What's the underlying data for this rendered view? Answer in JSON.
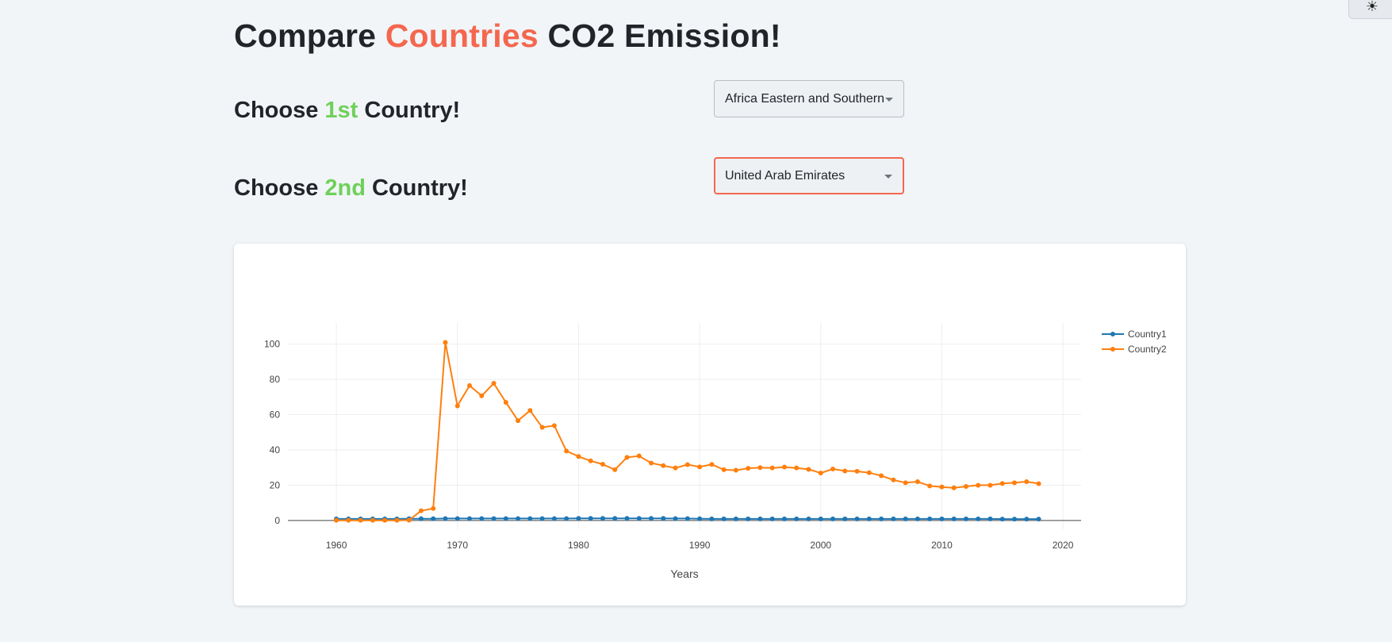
{
  "header": {
    "title_pre": "Compare ",
    "title_highlight": "Countries",
    "title_post": " CO2 Emission!"
  },
  "first_choice": {
    "pre": "Choose ",
    "highlight": "1st",
    "post": " Country!",
    "selected": "Africa Eastern and Southern"
  },
  "second_choice": {
    "pre": "Choose ",
    "highlight": "2nd",
    "post": " Country!",
    "selected": "United Arab Emirates"
  },
  "theme_toggle": {
    "icon": "sun-icon"
  },
  "colors": {
    "accent_red": "#f4674e",
    "accent_green": "#6fd05a",
    "series1": "#1f77b4",
    "series2": "#ff7f0e"
  },
  "chart_data": {
    "type": "line",
    "title": "",
    "xlabel": "Years",
    "ylabel": "",
    "xlim": [
      1956,
      2021.5
    ],
    "ylim": [
      -5,
      112
    ],
    "x_ticks": [
      1960,
      1970,
      1980,
      1990,
      2000,
      2010,
      2020
    ],
    "y_ticks": [
      0,
      20,
      40,
      60,
      80,
      100
    ],
    "grid": true,
    "legend_position": "top-right",
    "x": [
      1960,
      1961,
      1962,
      1963,
      1964,
      1965,
      1966,
      1967,
      1968,
      1969,
      1970,
      1971,
      1972,
      1973,
      1974,
      1975,
      1976,
      1977,
      1978,
      1979,
      1980,
      1981,
      1982,
      1983,
      1984,
      1985,
      1986,
      1987,
      1988,
      1989,
      1990,
      1991,
      1992,
      1993,
      1994,
      1995,
      1996,
      1997,
      1998,
      1999,
      2000,
      2001,
      2002,
      2003,
      2004,
      2005,
      2006,
      2007,
      2008,
      2009,
      2010,
      2011,
      2012,
      2013,
      2014,
      2015,
      2016,
      2017,
      2018
    ],
    "series": [
      {
        "name": "Country1",
        "color": "#1f77b4",
        "values": [
          0.9,
          0.9,
          0.9,
          0.9,
          0.9,
          0.9,
          1.0,
          1.0,
          1.0,
          1.1,
          1.1,
          1.1,
          1.1,
          1.1,
          1.1,
          1.1,
          1.1,
          1.1,
          1.1,
          1.1,
          1.2,
          1.2,
          1.2,
          1.2,
          1.2,
          1.2,
          1.2,
          1.2,
          1.1,
          1.1,
          1.0,
          0.9,
          0.9,
          0.9,
          0.9,
          0.9,
          0.9,
          0.9,
          0.9,
          0.9,
          0.9,
          0.9,
          0.9,
          0.9,
          0.9,
          0.9,
          0.9,
          0.9,
          0.9,
          0.9,
          0.9,
          0.9,
          0.9,
          0.9,
          0.9,
          0.8,
          0.8,
          0.8,
          0.8
        ]
      },
      {
        "name": "Country2",
        "color": "#ff7f0e",
        "values": [
          0.1,
          0.1,
          0.1,
          0.1,
          0.1,
          0.1,
          0.2,
          5.5,
          6.8,
          101,
          65,
          76.5,
          70.7,
          77.8,
          67,
          56.6,
          62.4,
          52.8,
          53.8,
          39.4,
          36.3,
          33.8,
          31.9,
          28.8,
          35.8,
          36.6,
          32.6,
          31.1,
          29.8,
          31.7,
          30.4,
          31.8,
          28.8,
          28.5,
          29.6,
          30.0,
          29.8,
          30.3,
          29.8,
          29.0,
          26.9,
          29.2,
          28.1,
          27.9,
          27.1,
          25.4,
          23.0,
          21.4,
          22.0,
          19.6,
          19.0,
          18.5,
          19.3,
          20.0,
          20.0,
          21.0,
          21.4,
          22.0,
          20.9
        ]
      }
    ]
  }
}
